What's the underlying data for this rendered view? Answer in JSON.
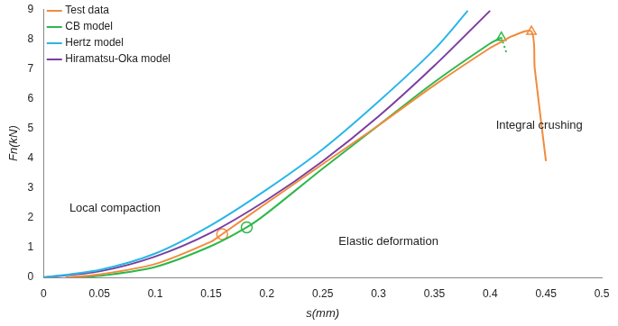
{
  "chart_data": {
    "type": "line",
    "x_label": "s(mm)",
    "y_label": "Fn(kN)",
    "xlim": [
      0,
      0.5
    ],
    "xticks": [
      0,
      0.05,
      0.1,
      0.15,
      0.2,
      0.25,
      0.3,
      0.35,
      0.4,
      0.45,
      0.5
    ],
    "ylim": [
      0,
      9
    ],
    "yticks": [
      0,
      1,
      2,
      3,
      4,
      5,
      6,
      7,
      8,
      9
    ],
    "grid": false,
    "legend": "top-left",
    "series": [
      {
        "name": "Test data",
        "color": "#f28b3c",
        "x": [
          0.02,
          0.05,
          0.1,
          0.15,
          0.16,
          0.2,
          0.25,
          0.3,
          0.35,
          0.4,
          0.41,
          0.42,
          0.437,
          0.44,
          0.45
        ],
        "values": [
          0,
          0.1,
          0.45,
          1.2,
          1.45,
          2.5,
          3.8,
          5.1,
          6.45,
          7.7,
          7.9,
          8.1,
          8.25,
          7.0,
          3.9
        ]
      },
      {
        "name": "CB model",
        "color": "#2db84b",
        "x": [
          0.03,
          0.05,
          0.1,
          0.15,
          0.182,
          0.2,
          0.25,
          0.3,
          0.35,
          0.4,
          0.41
        ],
        "values": [
          0,
          0.05,
          0.35,
          1.05,
          1.68,
          2.15,
          3.65,
          5.1,
          6.55,
          7.85,
          8.05
        ]
      },
      {
        "name": "Hertz model",
        "color": "#29b6e8",
        "x": [
          0,
          0.05,
          0.1,
          0.15,
          0.2,
          0.25,
          0.3,
          0.35,
          0.38
        ],
        "values": [
          0,
          0.25,
          0.8,
          1.75,
          2.95,
          4.3,
          5.9,
          7.65,
          8.95
        ]
      },
      {
        "name": "Hiramatsu-Oka model",
        "color": "#7b3fa0",
        "x": [
          0,
          0.05,
          0.1,
          0.15,
          0.2,
          0.25,
          0.3,
          0.35,
          0.4
        ],
        "values": [
          0,
          0.2,
          0.7,
          1.5,
          2.6,
          3.9,
          5.4,
          7.1,
          8.95
        ]
      }
    ],
    "extensions": [
      {
        "color": "#2db84b",
        "line_style": "dotted",
        "x": [
          0.41,
          0.415
        ],
        "values": [
          8.05,
          7.5
        ]
      }
    ],
    "markers": [
      {
        "color": "#f28b3c",
        "marker": "circle",
        "x": 0.16,
        "y": 1.45
      },
      {
        "color": "#2db84b",
        "marker": "circle",
        "x": 0.182,
        "y": 1.68
      },
      {
        "color": "#2db84b",
        "marker": "triangle",
        "x": 0.41,
        "y": 8.05
      },
      {
        "color": "#f28b3c",
        "marker": "triangle",
        "x": 0.437,
        "y": 8.25
      }
    ],
    "annotations": [
      "Local compaction",
      "Elastic deformation",
      "Integral crushing"
    ]
  }
}
